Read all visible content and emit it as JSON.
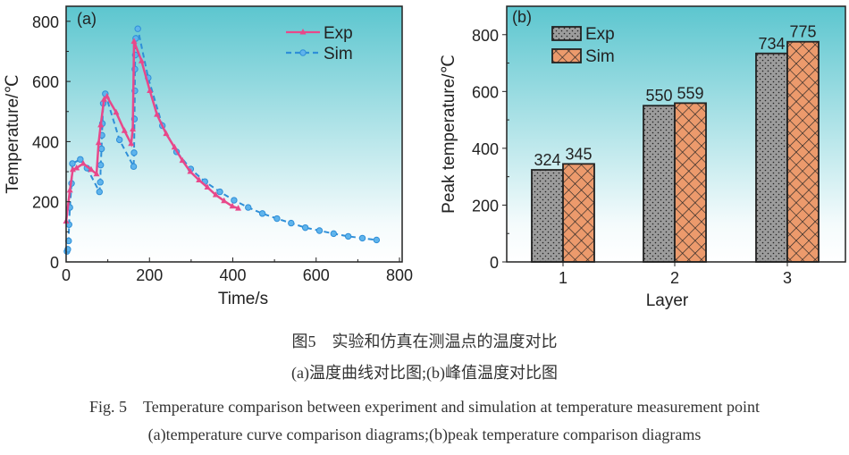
{
  "chart_data": [
    {
      "panel_label": "(a)",
      "type": "line",
      "xlabel": "Time/s",
      "ylabel": "Temperature/℃",
      "xlim": [
        0,
        800
      ],
      "ylim": [
        0,
        850
      ],
      "xticks": [
        "0",
        "200",
        "400",
        "600",
        "800"
      ],
      "yticks": [
        "0",
        "200",
        "400",
        "600",
        "800"
      ],
      "legend_position": "top-right",
      "series": [
        {
          "name": "Exp",
          "color": "#e8488a",
          "style": "solid",
          "marker": "triangle",
          "x": [
            0,
            9,
            16,
            25,
            41,
            60,
            73,
            78,
            83,
            91,
            98,
            120,
            140,
            156,
            160,
            163,
            181,
            201,
            218,
            240,
            260,
            279,
            298,
            319,
            339,
            359,
            379,
            399,
            413
          ],
          "y": [
            135,
            238,
            307,
            312,
            327,
            307,
            292,
            396,
            455,
            540,
            550,
            497,
            436,
            393,
            441,
            733,
            668,
            569,
            490,
            426,
            381,
            337,
            300,
            272,
            248,
            223,
            203,
            185,
            178
          ]
        },
        {
          "name": "Sim",
          "color": "#2f8fd8",
          "style": "dashed",
          "marker": "circle",
          "x": [
            2,
            4,
            6,
            7,
            9,
            13,
            15,
            34,
            50,
            80,
            82,
            83,
            85,
            86,
            87,
            89,
            94,
            128,
            162,
            163,
            164,
            165,
            165,
            166,
            167,
            172,
            197,
            231,
            265,
            299,
            333,
            369,
            403,
            437,
            471,
            506,
            540,
            574,
            608,
            642,
            677,
            711,
            745
          ],
          "y": [
            35,
            42,
            70,
            124,
            181,
            261,
            327,
            341,
            312,
            233,
            265,
            322,
            376,
            421,
            460,
            527,
            559,
            406,
            317,
            363,
            475,
            569,
            641,
            688,
            743,
            775,
            612,
            453,
            366,
            309,
            267,
            233,
            205,
            181,
            161,
            144,
            129,
            114,
            104,
            94,
            85,
            79,
            73
          ]
        }
      ]
    },
    {
      "panel_label": "(b)",
      "type": "bar",
      "xlabel": "Layer",
      "ylabel": "Peak temperature/℃",
      "categories": [
        "1",
        "2",
        "3"
      ],
      "ylim": [
        0,
        900
      ],
      "yticks": [
        "0",
        "200",
        "400",
        "600",
        "800"
      ],
      "legend_position": "top-left",
      "series": [
        {
          "name": "Exp",
          "color": "#9c9c9c",
          "pattern": "dots",
          "values": [
            324,
            550,
            734
          ],
          "labels": [
            "324",
            "550",
            "734"
          ]
        },
        {
          "name": "Sim",
          "color": "#ec9a6c",
          "pattern": "crosshatch",
          "values": [
            345,
            559,
            775
          ],
          "labels": [
            "345",
            "559",
            "775"
          ]
        }
      ]
    }
  ],
  "caption": {
    "cn_title": "图5　实验和仿真在测温点的温度对比",
    "cn_sub": "(a)温度曲线对比图;(b)峰值温度对比图",
    "en_title": "Fig. 5　Temperature comparison between experiment and simulation at temperature measurement point",
    "en_sub": "(a)temperature curve comparison diagrams;(b)peak temperature comparison diagrams"
  },
  "background_gradient": [
    "#5cc6cf",
    "#ffffff"
  ]
}
